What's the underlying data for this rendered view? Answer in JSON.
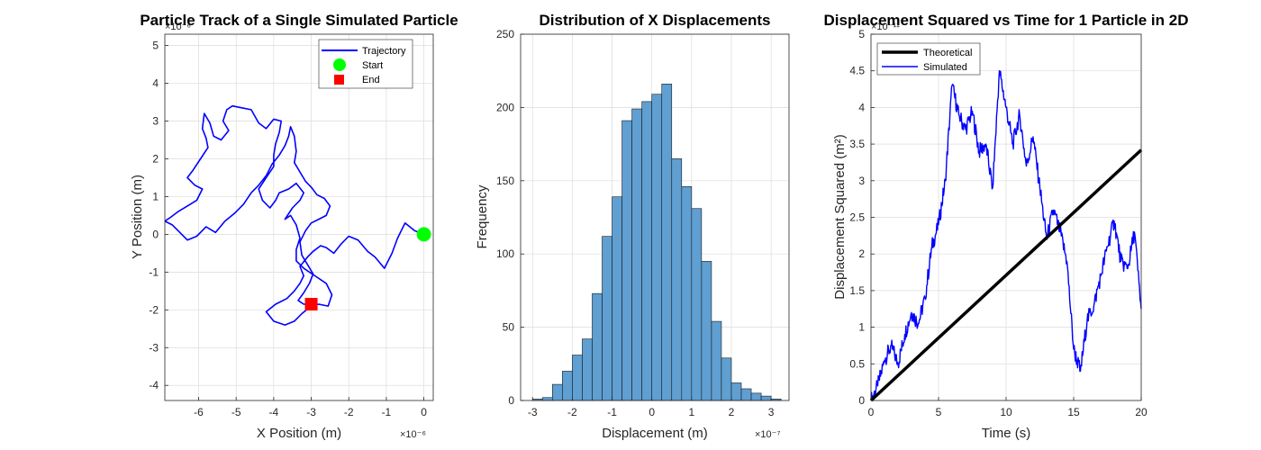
{
  "colors": {
    "trajectory": "#0000ff",
    "start": "#00ff00",
    "end": "#ff0000",
    "bar_fill": "#5f9fd2",
    "theoretical": "#000000",
    "simulated": "#0000ff"
  },
  "chart_data": [
    {
      "type": "line",
      "title": "Particle Track of a Single Simulated Particle",
      "xlabel": "X Position (m)",
      "ylabel": "Y Position (m)",
      "x_exponent": "×10⁻⁶",
      "y_exponent": "×10⁻⁶",
      "xlim": [
        -6.9,
        0.25
      ],
      "ylim": [
        -4.4,
        5.3
      ],
      "xticks": [
        -6,
        -5,
        -4,
        -3,
        -2,
        -1,
        0
      ],
      "yticks": [
        -4,
        -3,
        -2,
        -1,
        0,
        1,
        2,
        3,
        4,
        5
      ],
      "grid": true,
      "legend_position": "top-right",
      "legend": [
        "Trajectory",
        "Start",
        "End"
      ],
      "series": [
        {
          "name": "Trajectory",
          "points": [
            [
              0,
              0
            ],
            [
              -0.25,
              0.1
            ],
            [
              -0.5,
              0.3
            ],
            [
              -0.7,
              -0.1
            ],
            [
              -0.85,
              -0.5
            ],
            [
              -1.05,
              -0.9
            ],
            [
              -1.3,
              -0.6
            ],
            [
              -1.5,
              -0.45
            ],
            [
              -1.75,
              -0.15
            ],
            [
              -2.0,
              -0.05
            ],
            [
              -2.2,
              -0.25
            ],
            [
              -2.4,
              -0.5
            ],
            [
              -2.6,
              -0.35
            ],
            [
              -2.75,
              -0.3
            ],
            [
              -2.95,
              -0.45
            ],
            [
              -3.1,
              -0.6
            ],
            [
              -3.3,
              -0.85
            ],
            [
              -3.2,
              -1.1
            ],
            [
              -3.3,
              -1.3
            ],
            [
              -3.45,
              -1.5
            ],
            [
              -3.65,
              -1.7
            ],
            [
              -3.95,
              -1.85
            ],
            [
              -4.2,
              -2.05
            ],
            [
              -4.0,
              -2.3
            ],
            [
              -3.7,
              -2.4
            ],
            [
              -3.45,
              -2.3
            ],
            [
              -3.25,
              -2.1
            ],
            [
              -3.0,
              -1.9
            ],
            [
              -2.8,
              -1.85
            ],
            [
              -2.55,
              -1.9
            ],
            [
              -2.45,
              -1.6
            ],
            [
              -2.6,
              -1.3
            ],
            [
              -2.9,
              -1.1
            ],
            [
              -3.2,
              -0.9
            ],
            [
              -3.4,
              -0.7
            ],
            [
              -3.4,
              -0.4
            ],
            [
              -3.3,
              -0.1
            ],
            [
              -3.4,
              0.25
            ],
            [
              -3.55,
              0.5
            ],
            [
              -3.7,
              0.4
            ],
            [
              -3.5,
              0.7
            ],
            [
              -3.3,
              0.9
            ],
            [
              -3.2,
              1.1
            ],
            [
              -3.4,
              1.35
            ],
            [
              -3.6,
              1.2
            ],
            [
              -3.85,
              1.1
            ],
            [
              -3.95,
              0.9
            ],
            [
              -4.1,
              0.7
            ],
            [
              -4.3,
              0.9
            ],
            [
              -4.4,
              1.2
            ],
            [
              -4.2,
              1.5
            ],
            [
              -4.0,
              1.8
            ],
            [
              -4.0,
              2.1
            ],
            [
              -3.95,
              2.4
            ],
            [
              -3.85,
              2.7
            ],
            [
              -3.8,
              3.0
            ],
            [
              -4.0,
              3.05
            ],
            [
              -4.2,
              2.8
            ],
            [
              -4.4,
              2.95
            ],
            [
              -4.6,
              3.3
            ],
            [
              -4.85,
              3.35
            ],
            [
              -5.1,
              3.4
            ],
            [
              -5.25,
              3.3
            ],
            [
              -5.35,
              3.0
            ],
            [
              -5.2,
              2.75
            ],
            [
              -5.4,
              2.5
            ],
            [
              -5.6,
              2.6
            ],
            [
              -5.7,
              2.95
            ],
            [
              -5.85,
              3.2
            ],
            [
              -5.9,
              2.8
            ],
            [
              -5.8,
              2.55
            ],
            [
              -5.75,
              2.3
            ],
            [
              -5.95,
              2.0
            ],
            [
              -6.15,
              1.7
            ],
            [
              -6.3,
              1.5
            ],
            [
              -6.1,
              1.3
            ],
            [
              -5.9,
              1.2
            ],
            [
              -6.05,
              0.9
            ],
            [
              -6.3,
              0.75
            ],
            [
              -6.55,
              0.6
            ],
            [
              -6.75,
              0.45
            ],
            [
              -6.9,
              0.35
            ],
            [
              -6.7,
              0.25
            ],
            [
              -6.5,
              0.05
            ],
            [
              -6.3,
              -0.15
            ],
            [
              -6.05,
              -0.05
            ],
            [
              -5.8,
              0.2
            ],
            [
              -5.55,
              0.05
            ],
            [
              -5.3,
              0.35
            ],
            [
              -5.05,
              0.55
            ],
            [
              -4.8,
              0.8
            ],
            [
              -4.6,
              1.1
            ],
            [
              -4.4,
              1.3
            ],
            [
              -4.2,
              1.55
            ],
            [
              -4.05,
              1.85
            ],
            [
              -3.85,
              2.1
            ],
            [
              -3.7,
              2.35
            ],
            [
              -3.6,
              2.6
            ],
            [
              -3.55,
              2.85
            ],
            [
              -3.45,
              2.6
            ],
            [
              -3.4,
              2.2
            ],
            [
              -3.45,
              1.9
            ],
            [
              -3.3,
              1.65
            ],
            [
              -3.15,
              1.4
            ],
            [
              -3.0,
              1.25
            ],
            [
              -2.85,
              1.05
            ],
            [
              -2.65,
              0.95
            ],
            [
              -2.5,
              0.75
            ],
            [
              -2.6,
              0.5
            ],
            [
              -2.8,
              0.4
            ],
            [
              -3.0,
              0.3
            ],
            [
              -3.15,
              0.1
            ],
            [
              -3.3,
              -0.2
            ],
            [
              -3.25,
              -0.55
            ],
            [
              -3.1,
              -0.8
            ],
            [
              -2.95,
              -1.05
            ],
            [
              -3.05,
              -1.3
            ],
            [
              -3.2,
              -1.55
            ],
            [
              -3.35,
              -1.75
            ],
            [
              -3.2,
              -1.85
            ],
            [
              -3.0,
              -1.85
            ]
          ]
        },
        {
          "name": "Start",
          "points": [
            [
              0,
              0
            ]
          ]
        },
        {
          "name": "End",
          "points": [
            [
              -3.0,
              -1.85
            ]
          ]
        }
      ]
    },
    {
      "type": "bar",
      "title": "Distribution of X Displacements",
      "xlabel": "Displacement (m)",
      "ylabel": "Frequency",
      "x_exponent": "×10⁻⁷",
      "xlim": [
        -3.3,
        3.45
      ],
      "ylim": [
        0,
        250
      ],
      "xticks": [
        -3,
        -2,
        -1,
        0,
        1,
        2,
        3
      ],
      "yticks": [
        0,
        50,
        100,
        150,
        200,
        250
      ],
      "grid": true,
      "bin_edges": [
        -3.0,
        -2.75,
        -2.5,
        -2.25,
        -2.0,
        -1.75,
        -1.5,
        -1.25,
        -1.0,
        -0.75,
        -0.5,
        -0.25,
        0.0,
        0.25,
        0.5,
        0.75,
        1.0,
        1.25,
        1.5,
        1.75,
        2.0,
        2.25,
        2.5,
        2.75,
        3.0,
        3.25
      ],
      "values": [
        1,
        2,
        11,
        20,
        31,
        42,
        73,
        112,
        139,
        191,
        199,
        204,
        209,
        216,
        165,
        146,
        131,
        95,
        54,
        29,
        12,
        8,
        5,
        3,
        1
      ]
    },
    {
      "type": "line",
      "title": "Displacement Squared vs Time for 1 Particle in 2D",
      "xlabel": "Time (s)",
      "ylabel": "Displacement Squared (m²)",
      "y_exponent": "×10⁻¹¹",
      "xlim": [
        0,
        20
      ],
      "ylim": [
        0,
        5
      ],
      "xticks": [
        0,
        5,
        10,
        15,
        20
      ],
      "yticks": [
        0,
        0.5,
        1,
        1.5,
        2,
        2.5,
        3,
        3.5,
        4,
        4.5,
        5
      ],
      "grid": true,
      "legend_position": "top-left",
      "legend": [
        "Theoretical",
        "Simulated"
      ],
      "series": [
        {
          "name": "Theoretical",
          "points": [
            [
              0,
              0
            ],
            [
              20,
              3.42
            ]
          ]
        },
        {
          "name": "Simulated",
          "points": [
            [
              0,
              0
            ],
            [
              0.5,
              0.2
            ],
            [
              1,
              0.55
            ],
            [
              1.5,
              0.75
            ],
            [
              2,
              0.5
            ],
            [
              2.5,
              0.9
            ],
            [
              3,
              1.2
            ],
            [
              3.5,
              1.05
            ],
            [
              4,
              1.4
            ],
            [
              4.5,
              2.1
            ],
            [
              5,
              2.4
            ],
            [
              5.5,
              3.0
            ],
            [
              6,
              4.3
            ],
            [
              6.5,
              3.9
            ],
            [
              7,
              3.7
            ],
            [
              7.5,
              3.95
            ],
            [
              8,
              3.4
            ],
            [
              8.5,
              3.5
            ],
            [
              9,
              2.9
            ],
            [
              9.5,
              4.5
            ],
            [
              10,
              4.0
            ],
            [
              10.5,
              3.5
            ],
            [
              11,
              3.9
            ],
            [
              11.5,
              3.2
            ],
            [
              12,
              3.6
            ],
            [
              12.5,
              2.9
            ],
            [
              13,
              2.2
            ],
            [
              13.5,
              2.6
            ],
            [
              14,
              2.3
            ],
            [
              14.5,
              1.9
            ],
            [
              15,
              0.7
            ],
            [
              15.5,
              0.4
            ],
            [
              16,
              1.1
            ],
            [
              16.5,
              1.3
            ],
            [
              17,
              1.7
            ],
            [
              17.5,
              2.1
            ],
            [
              18,
              2.45
            ],
            [
              18.5,
              1.9
            ],
            [
              19,
              1.8
            ],
            [
              19.5,
              2.3
            ],
            [
              20,
              1.25
            ]
          ]
        }
      ]
    }
  ]
}
